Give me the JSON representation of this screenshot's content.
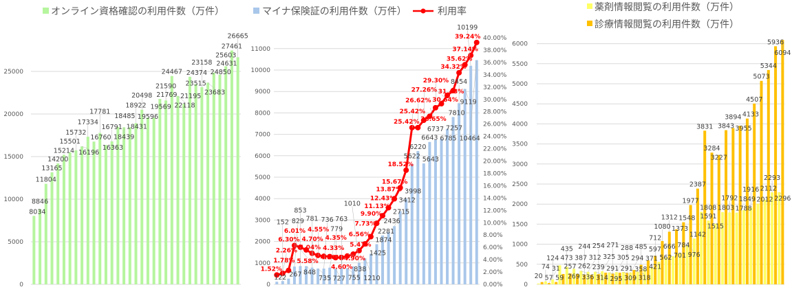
{
  "chart_data": [
    {
      "type": "bar",
      "title": "",
      "legend": [
        "オンライン資格確認の利用件数（万件）"
      ],
      "legend_position": "top",
      "color": "#b6f59e",
      "ylim": [
        0,
        28000
      ],
      "yticks": [
        0,
        5000,
        10000,
        15000,
        20000,
        25000
      ],
      "grid": true,
      "series": [
        {
          "name": "オンライン資格確認の利用件数（万件）",
          "values": [
            8034,
            8846,
            11804,
            13165,
            14200,
            15214,
            15501,
            15732,
            16196,
            17334,
            16760,
            17781,
            16363,
            16791,
            18485,
            18439,
            18431,
            18922,
            20498,
            19596,
            19569,
            21769,
            21590,
            24467,
            22118,
            21195,
            24374,
            23515,
            23158,
            23683,
            24850,
            24631,
            25603,
            27461,
            26665
          ]
        }
      ]
    },
    {
      "type": "bar+line",
      "title": "",
      "legend": [
        "マイナ保険証の利用件数（万件）",
        "利用率"
      ],
      "legend_position": "top",
      "bar_color": "#a9c7ea",
      "line_color": "#ff0000",
      "ylim": [
        0,
        11500
      ],
      "yticks": [
        0,
        1000,
        2000,
        3000,
        4000,
        5000,
        6000,
        7000,
        8000,
        9000,
        10000,
        11000
      ],
      "y2lim": [
        0,
        40
      ],
      "y2ticks": [
        "0.00%",
        "2.00%",
        "4.00%",
        "6.00%",
        "8.00%",
        "10.00%",
        "12.00%",
        "14.00%",
        "16.00%",
        "18.00%",
        "20.00%",
        "22.00%",
        "24.00%",
        "26.00%",
        "28.00%",
        "30.00%",
        "32.00%",
        "34.00%",
        "36.00%",
        "38.00%",
        "40.00%"
      ],
      "grid": true,
      "series": [
        {
          "name": "マイナ保険証の利用件数（万件）",
          "values": [
            122,
            152,
            267,
            829,
            853,
            848,
            781,
            735,
            736,
            779,
            727,
            763,
            755,
            838,
            1010,
            1210,
            1425,
            1874,
            2281,
            2436,
            2715,
            3412,
            3998,
            5622,
            6220,
            5643,
            6643,
            6737,
            6785,
            7257,
            7810,
            8454,
            9119,
            10199,
            10464
          ]
        },
        {
          "name": "利用率",
          "values": [
            1.52,
            1.78,
            2.26,
            6.3,
            6.01,
            5.58,
            5.04,
            4.7,
            4.55,
            4.5,
            4.33,
            4.35,
            4.6,
            4.9,
            5.47,
            6.56,
            7.73,
            9.9,
            11.13,
            12.43,
            13.87,
            15.67,
            18.52,
            25.42,
            25.42,
            26.62,
            27.26,
            28.65,
            29.3,
            30.64,
            31.43,
            34.32,
            35.62,
            37.14,
            39.24
          ],
          "labels": [
            "1.52%",
            "1.78%",
            "2.26%",
            "6.30%",
            "6.01%",
            "5.58%",
            "5.04%",
            "4.70%",
            "4.55%",
            "4.50%",
            "4.33%",
            "4.35%",
            "4.60%",
            "4.90%",
            "5.47%",
            "6.56%",
            "7.73%",
            "9.90%",
            "11.13%",
            "12.43%",
            "13.87%",
            "15.67%",
            "18.52%",
            "25.42%",
            "25.42%",
            "26.62%",
            "27.26%",
            "28.65%",
            "29.30%",
            "30.64%",
            "31.43%",
            "34.32%",
            "35.62%",
            "37.14%",
            "39.24%"
          ]
        }
      ]
    },
    {
      "type": "bar",
      "title": "",
      "legend": [
        "薬剤情報閲覧の利用件数（万件）",
        "診療情報閲覧の利用件数（万件）"
      ],
      "legend_position": "top",
      "colors": [
        "#ffff66",
        "#ffc000"
      ],
      "ylim": [
        0,
        6200
      ],
      "yticks": [
        0,
        500,
        1000,
        1500,
        2000,
        2500,
        3000,
        3500,
        4000,
        4500,
        5000,
        5500,
        6000
      ],
      "grid": true,
      "series": [
        {
          "name": "薬剤情報閲覧の利用件数（万件）",
          "values": [
            20,
            74,
            124,
            473,
            435,
            387,
            336,
            312,
            314,
            325,
            295,
            305,
            309,
            294,
            318,
            371,
            421,
            562,
            666,
            701,
            784,
            976,
            1142,
            1808,
            1591,
            1515,
            1803,
            1792,
            1788,
            1849,
            1916,
            2012,
            2112,
            2293,
            2296
          ]
        },
        {
          "name": "診療情報閲覧の利用件数（万件）",
          "values": [
            57,
            31,
            59,
            257,
            269,
            262,
            244,
            239,
            254,
            291,
            271,
            291,
            288,
            358,
            485,
            597,
            712,
            1080,
            1312,
            1373,
            1548,
            1977,
            2387,
            3831,
            3284,
            3227,
            3843,
            3894,
            3955,
            4133,
            4507,
            5073,
            5344,
            5936,
            6094
          ]
        }
      ]
    }
  ]
}
